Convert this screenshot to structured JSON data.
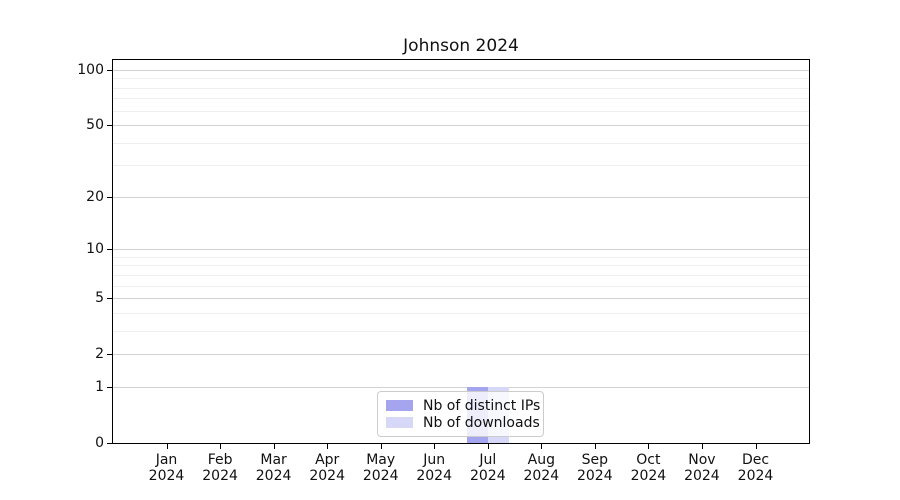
{
  "title": "Johnson 2024",
  "chart_data": {
    "type": "bar",
    "title": "Johnson 2024",
    "xlabel": "",
    "ylabel": "",
    "yscale": "log1p",
    "ylim": [
      0,
      113
    ],
    "grid": "horizontal",
    "legend_position": "lower center",
    "categories": [
      "Jan 2024",
      "Feb 2024",
      "Mar 2024",
      "Apr 2024",
      "May 2024",
      "Jun 2024",
      "Jul 2024",
      "Aug 2024",
      "Sep 2024",
      "Oct 2024",
      "Nov 2024",
      "Dec 2024"
    ],
    "series": [
      {
        "name": "Nb of distinct IPs",
        "color": "#a5a5ef",
        "values": [
          0,
          0,
          0,
          0,
          0,
          0,
          1,
          0,
          0,
          0,
          0,
          0
        ]
      },
      {
        "name": "Nb of downloads",
        "color": "#d7d7f8",
        "values": [
          0,
          0,
          0,
          0,
          0,
          0,
          1,
          0,
          0,
          0,
          0,
          0
        ]
      }
    ],
    "yticks_major": [
      0,
      1,
      2,
      5,
      10,
      20,
      50,
      100
    ],
    "yticks_minor": [
      3,
      4,
      6,
      7,
      8,
      9,
      30,
      40,
      60,
      70,
      80,
      90
    ]
  },
  "colors": {
    "grid_major": "#d2d2d2",
    "grid_minor": "#efefef",
    "axis": "#000000",
    "text": "#111111",
    "legend_border": "#cccccc"
  }
}
